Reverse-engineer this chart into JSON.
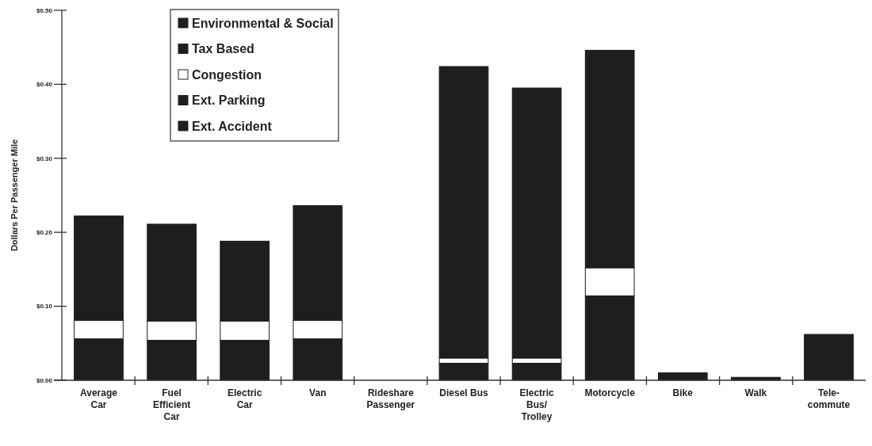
{
  "chart_data": {
    "type": "bar",
    "stacked": true,
    "ylabel": "Dollars Per Passenger Mile",
    "categories": [
      "Average Car",
      "Fuel Efficient Car",
      "Electric Car",
      "Van",
      "Rideshare Passenger",
      "Diesel Bus",
      "Electric Bus/ Trolley",
      "Motorcycle",
      "Bike",
      "Walk",
      "Tele-commute"
    ],
    "series": [
      {
        "name": "Ext. Accident",
        "color": "#1e1e1e",
        "values": [
          0.056,
          0.054,
          0.054,
          0.056,
          0,
          0.023,
          0.023,
          0.114,
          0.01,
          0.004,
          0.062
        ]
      },
      {
        "name": "Ext. Parking",
        "color": "#1e1e1e",
        "values": [
          null,
          null,
          null,
          null,
          null,
          null,
          null,
          null,
          null,
          null,
          null
        ]
      },
      {
        "name": "Congestion",
        "color": "#ffffff",
        "values": [
          0.025,
          0.026,
          0.026,
          0.025,
          0,
          0.007,
          0.007,
          0.038,
          0,
          0,
          0
        ]
      },
      {
        "name": "Tax Based",
        "color": "#1e1e1e",
        "values": [
          null,
          null,
          null,
          null,
          null,
          null,
          null,
          null,
          null,
          null,
          null
        ]
      },
      {
        "name": "Environmental & Social",
        "color": "#1e1e1e",
        "values": [
          0.141,
          0.131,
          0.108,
          0.155,
          0,
          0.394,
          0.365,
          0.294,
          0,
          0,
          0
        ]
      }
    ],
    "ylim": [
      0,
      0.5
    ],
    "yticks": [
      {
        "value": 0,
        "label": "$0.00"
      },
      {
        "value": 0.1,
        "label": "$0.10"
      },
      {
        "value": 0.2,
        "label": "$0.20"
      },
      {
        "value": 0.3,
        "label": "$0.30"
      },
      {
        "value": 0.4,
        "label": "$0.40"
      },
      {
        "value": 0.5,
        "label": "$0.50"
      }
    ],
    "grid": false,
    "legend": "top left"
  }
}
